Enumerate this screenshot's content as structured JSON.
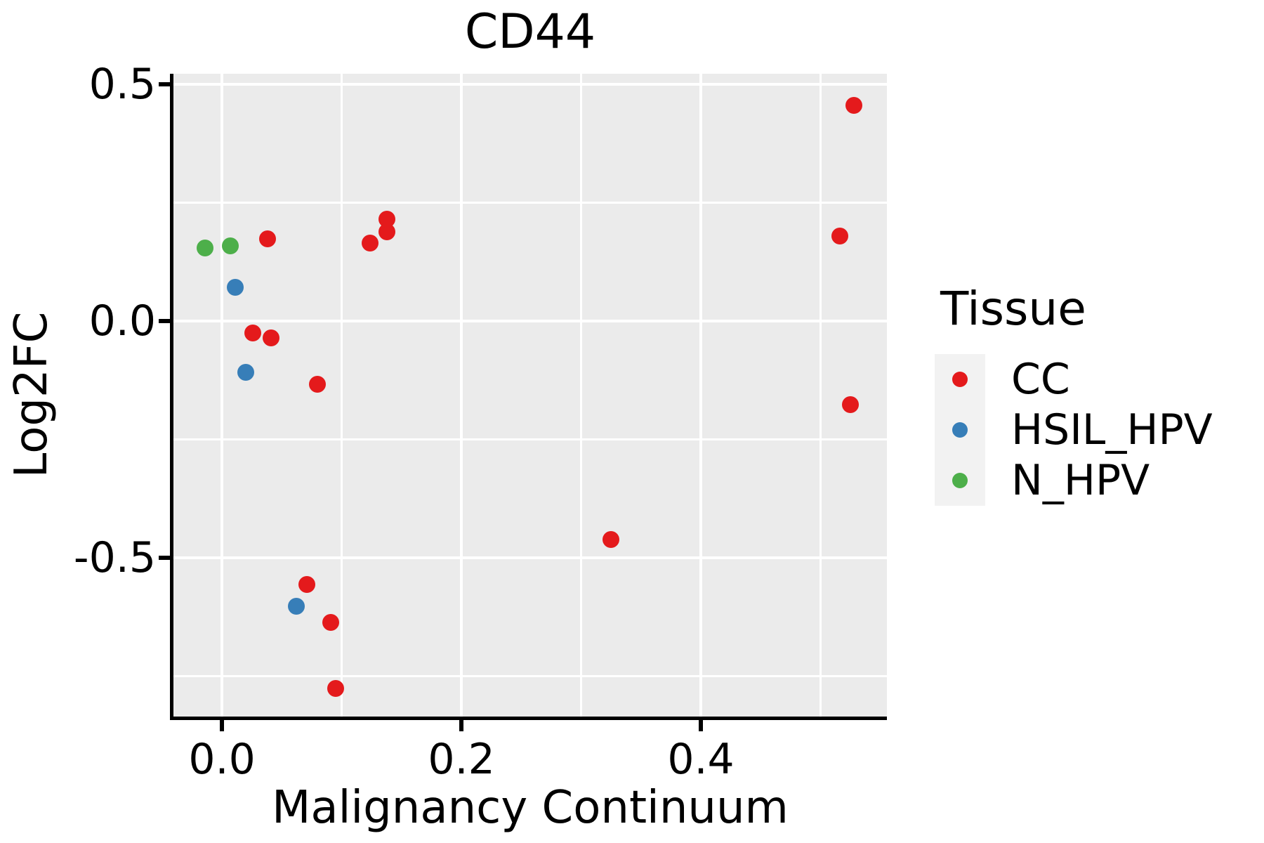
{
  "title": "CD44",
  "chart_data": {
    "type": "scatter",
    "title": "CD44",
    "xlabel": "Malignancy Continuum",
    "ylabel": "Log2FC",
    "xlim": [
      -0.0405,
      0.5554
    ],
    "ylim": [
      -0.8353,
      0.5223
    ],
    "grid": true,
    "legend_position": "right",
    "x_ticks": [
      0.0,
      0.2,
      0.4
    ],
    "x_tick_labels": [
      "0.0",
      "0.2",
      "0.4"
    ],
    "x_minor_gridlines": [
      0.1,
      0.3,
      0.5
    ],
    "y_ticks": [
      0.5,
      0.0,
      -0.5
    ],
    "y_tick_labels": [
      "0.5",
      "0.0",
      "-0.5"
    ],
    "y_minor_gridlines": [
      0.25,
      -0.25,
      -0.75
    ],
    "series": [
      {
        "name": "CC",
        "color": "#E41A1C",
        "points": [
          [
            0.038,
            0.174
          ],
          [
            0.026,
            -0.025
          ],
          [
            0.041,
            -0.036
          ],
          [
            0.08,
            -0.134
          ],
          [
            0.124,
            0.164
          ],
          [
            0.138,
            0.188
          ],
          [
            0.138,
            0.215
          ],
          [
            0.325,
            -0.462
          ],
          [
            0.528,
            0.456
          ],
          [
            0.516,
            0.18
          ],
          [
            0.525,
            -0.176
          ],
          [
            0.071,
            -0.556
          ],
          [
            0.091,
            -0.636
          ],
          [
            0.095,
            -0.776
          ]
        ]
      },
      {
        "name": "HSIL_HPV",
        "color": "#377EB8",
        "points": [
          [
            0.011,
            0.071
          ],
          [
            0.02,
            -0.109
          ],
          [
            0.062,
            -0.602
          ]
        ]
      },
      {
        "name": "N_HPV",
        "color": "#4DAF4A",
        "points": [
          [
            -0.014,
            0.155
          ],
          [
            0.007,
            0.159
          ]
        ]
      }
    ]
  },
  "legend": {
    "title": "Tissue",
    "entries": [
      {
        "label": "CC",
        "color": "#E41A1C"
      },
      {
        "label": "HSIL_HPV",
        "color": "#377EB8"
      },
      {
        "label": "N_HPV",
        "color": "#4DAF4A"
      }
    ]
  },
  "colors": {
    "panel_background": "#EBEBEB",
    "gridline": "#FFFFFF",
    "axis_line": "#000000",
    "text": "#000000",
    "legend_key_background": "#F2F2F2"
  }
}
